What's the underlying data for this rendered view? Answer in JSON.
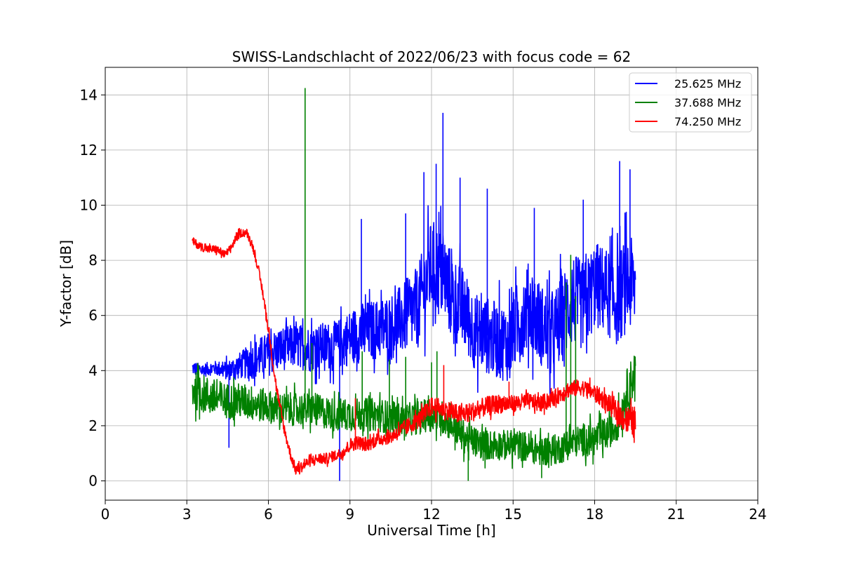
{
  "chart_data": {
    "type": "line",
    "title": "SWISS-Landschlacht of 2022/06/23 with focus code = 62",
    "xlabel": "Universal Time [h]",
    "ylabel": "Y-factor [dB]",
    "xlim": [
      0,
      24
    ],
    "ylim": [
      -0.7,
      15.0
    ],
    "xticks": [
      0,
      3,
      6,
      9,
      12,
      15,
      18,
      21,
      24
    ],
    "yticks": [
      0,
      2,
      4,
      6,
      8,
      10,
      12,
      14
    ],
    "xtick_labels": [
      "0",
      "3",
      "6",
      "9",
      "12",
      "15",
      "18",
      "21",
      "24"
    ],
    "ytick_labels": [
      "0",
      "2",
      "4",
      "6",
      "8",
      "10",
      "12",
      "14"
    ],
    "grid": true,
    "legend_position": "top-right",
    "series": [
      {
        "name": "25.625 MHz",
        "color": "#0000ff",
        "x": [
          3.2,
          3.5,
          4.0,
          4.5,
          5.0,
          5.5,
          6.0,
          6.5,
          7.0,
          7.5,
          8.0,
          8.5,
          9.0,
          9.5,
          10.0,
          10.5,
          11.0,
          11.5,
          12.0,
          12.4,
          12.8,
          13.2,
          13.6,
          14.0,
          14.4,
          14.8,
          15.2,
          15.6,
          16.0,
          16.4,
          16.8,
          17.2,
          17.6,
          18.0,
          18.4,
          18.8,
          19.2,
          19.5
        ],
        "y": [
          4.1,
          4.0,
          4.1,
          4.0,
          4.2,
          4.4,
          4.6,
          4.8,
          4.9,
          4.8,
          4.9,
          4.9,
          5.2,
          5.4,
          5.5,
          5.6,
          5.9,
          6.3,
          7.8,
          7.5,
          6.6,
          6.2,
          5.4,
          5.3,
          5.1,
          5.0,
          5.8,
          6.4,
          5.7,
          5.2,
          5.9,
          6.6,
          6.3,
          7.1,
          6.9,
          6.5,
          7.2,
          7.0
        ],
        "noise": [
          0.25,
          0.25,
          0.25,
          0.35,
          0.5,
          0.7,
          0.8,
          0.8,
          0.8,
          0.85,
          0.85,
          0.9,
          1.0,
          1.1,
          1.1,
          1.2,
          1.3,
          1.5,
          1.7,
          1.7,
          1.6,
          1.5,
          1.4,
          1.4,
          1.4,
          1.4,
          1.5,
          1.6,
          1.5,
          1.5,
          1.6,
          1.7,
          1.6,
          1.6,
          1.6,
          1.6,
          1.8,
          1.6
        ],
        "spikes": [
          [
            4.55,
            1.2
          ],
          [
            8.62,
            0.0
          ],
          [
            9.42,
            9.5
          ],
          [
            11.05,
            9.7
          ],
          [
            11.72,
            11.2
          ],
          [
            12.17,
            11.5
          ],
          [
            12.42,
            13.35
          ],
          [
            13.05,
            11.0
          ],
          [
            14.05,
            10.6
          ],
          [
            15.78,
            9.9
          ],
          [
            17.58,
            10.2
          ],
          [
            18.92,
            11.6
          ],
          [
            19.3,
            11.3
          ]
        ]
      },
      {
        "name": "37.688 MHz",
        "color": "#008000",
        "x": [
          3.2,
          3.5,
          4.0,
          4.5,
          5.0,
          5.5,
          6.0,
          6.5,
          7.0,
          7.5,
          8.0,
          8.5,
          9.0,
          9.5,
          10.0,
          10.5,
          11.0,
          11.5,
          12.0,
          12.4,
          12.8,
          13.2,
          13.6,
          14.0,
          14.4,
          14.8,
          15.2,
          15.6,
          16.0,
          16.4,
          16.8,
          17.0,
          17.2,
          17.6,
          18.0,
          18.4,
          18.8,
          19.0,
          19.2,
          19.5
        ],
        "y": [
          3.3,
          3.2,
          3.0,
          2.9,
          2.9,
          2.8,
          2.7,
          2.6,
          2.6,
          2.6,
          2.5,
          2.4,
          2.4,
          2.4,
          2.4,
          2.3,
          2.2,
          2.3,
          2.4,
          2.3,
          2.0,
          1.6,
          1.4,
          1.3,
          1.3,
          1.3,
          1.3,
          1.2,
          1.1,
          1.1,
          1.2,
          1.3,
          1.4,
          1.5,
          1.5,
          1.7,
          2.0,
          2.5,
          3.3,
          4.0
        ],
        "noise": [
          0.7,
          0.7,
          0.7,
          0.65,
          0.65,
          0.65,
          0.6,
          0.6,
          0.6,
          0.6,
          0.6,
          0.6,
          0.6,
          0.6,
          0.6,
          0.6,
          0.6,
          0.6,
          0.6,
          0.6,
          0.6,
          0.6,
          0.55,
          0.55,
          0.55,
          0.55,
          0.55,
          0.55,
          0.55,
          0.55,
          0.55,
          0.55,
          0.55,
          0.6,
          0.6,
          0.6,
          0.6,
          0.7,
          0.8,
          0.8
        ],
        "spikes": [
          [
            7.35,
            14.25
          ],
          [
            7.6,
            5.0
          ],
          [
            9.45,
            4.7
          ],
          [
            10.45,
            4.4
          ],
          [
            11.05,
            4.5
          ],
          [
            12.0,
            4.3
          ],
          [
            12.2,
            4.7
          ],
          [
            16.95,
            7.2
          ],
          [
            17.12,
            8.2
          ],
          [
            17.3,
            6.7
          ],
          [
            13.35,
            0.0
          ],
          [
            16.05,
            0.1
          ]
        ]
      },
      {
        "name": "74.250 MHz",
        "color": "#ff0000",
        "x": [
          3.2,
          3.5,
          3.8,
          4.1,
          4.4,
          4.6,
          4.8,
          5.0,
          5.2,
          5.4,
          5.6,
          5.8,
          6.0,
          6.2,
          6.4,
          6.6,
          6.8,
          7.0,
          7.2,
          7.5,
          7.8,
          8.1,
          8.4,
          8.7,
          9.0,
          9.3,
          9.6,
          10.0,
          10.5,
          11.0,
          11.5,
          12.0,
          12.5,
          13.0,
          13.5,
          14.0,
          14.5,
          15.0,
          15.5,
          16.0,
          16.5,
          17.0,
          17.5,
          18.0,
          18.5,
          19.0,
          19.5
        ],
        "y": [
          8.7,
          8.5,
          8.4,
          8.4,
          8.2,
          8.4,
          8.8,
          9.0,
          9.0,
          8.6,
          7.8,
          6.8,
          5.5,
          4.0,
          2.8,
          1.8,
          1.0,
          0.4,
          0.5,
          0.7,
          0.8,
          0.8,
          0.9,
          1.0,
          1.3,
          1.4,
          1.3,
          1.5,
          1.6,
          1.9,
          2.2,
          2.7,
          2.6,
          2.4,
          2.5,
          2.7,
          2.8,
          2.8,
          2.9,
          2.8,
          3.0,
          3.3,
          3.4,
          3.2,
          2.8,
          2.3,
          2.1
        ],
        "noise": [
          0.15,
          0.15,
          0.15,
          0.15,
          0.15,
          0.15,
          0.15,
          0.15,
          0.15,
          0.15,
          0.15,
          0.2,
          0.2,
          0.2,
          0.2,
          0.2,
          0.2,
          0.2,
          0.2,
          0.2,
          0.2,
          0.2,
          0.2,
          0.2,
          0.25,
          0.25,
          0.25,
          0.25,
          0.25,
          0.3,
          0.3,
          0.35,
          0.35,
          0.35,
          0.35,
          0.35,
          0.35,
          0.3,
          0.3,
          0.3,
          0.3,
          0.3,
          0.3,
          0.3,
          0.35,
          0.45,
          0.6
        ],
        "spikes": [
          [
            9.2,
            3.0
          ],
          [
            12.45,
            4.2
          ],
          [
            14.85,
            3.6
          ],
          [
            16.9,
            3.3
          ]
        ]
      }
    ]
  }
}
